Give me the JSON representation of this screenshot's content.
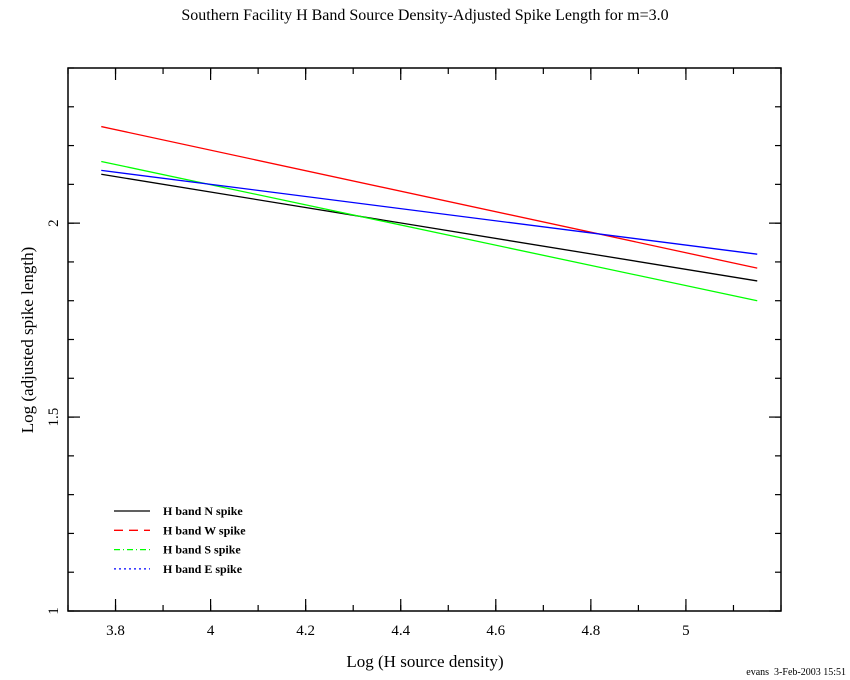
{
  "chart_data": {
    "type": "line",
    "title": "Southern Facility H Band Source Density-Adjusted Spike Length for m=3.0",
    "xlabel": "Log (H source density)",
    "ylabel": "Log (adjusted spike length)",
    "xlim": [
      3.7,
      5.2
    ],
    "ylim": [
      1,
      2.4
    ],
    "xticks": [
      3.8,
      4,
      4.2,
      4.4,
      4.6,
      4.8,
      5
    ],
    "xtick_labels": [
      "3.8",
      "4",
      "4.2",
      "4.4",
      "4.6",
      "4.8",
      "5"
    ],
    "yticks": [
      1,
      1.5,
      2
    ],
    "ytick_labels": [
      "1",
      "1.5",
      "2"
    ],
    "x_minor_step": 0.1,
    "y_minor_step": 0.1,
    "grid": false,
    "legend_position": "bottom-left",
    "series": [
      {
        "name": "H band N spike",
        "color": "#000000",
        "dash": "solid",
        "x": [
          3.77,
          5.15
        ],
        "y": [
          2.126,
          1.851
        ]
      },
      {
        "name": "H band W spike",
        "color": "#ff0000",
        "dash": "dashed",
        "x": [
          3.77,
          5.15
        ],
        "y": [
          2.249,
          1.884
        ]
      },
      {
        "name": "H band S spike",
        "color": "#00ff00",
        "dash": "dash-dot",
        "x": [
          3.77,
          5.15
        ],
        "y": [
          2.159,
          1.8
        ]
      },
      {
        "name": "H band E spike",
        "color": "#0000ff",
        "dash": "dotted",
        "x": [
          3.77,
          5.15
        ],
        "y": [
          2.136,
          1.92
        ]
      }
    ],
    "footer": "evans  3-Feb-2003 15:51"
  }
}
